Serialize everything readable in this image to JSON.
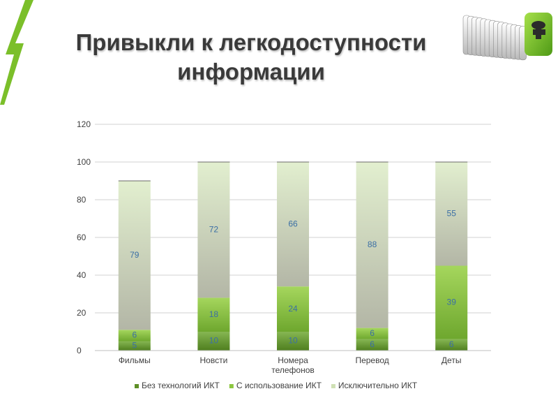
{
  "title": {
    "line1": "Привыкли к легкодоступности",
    "line2": "информации"
  },
  "decor": {
    "slash_icon": "green-lightning-slash",
    "logo_icon": "green-key-cylinder",
    "accent": "#7bbf2a"
  },
  "chart_data": {
    "type": "bar",
    "stacked": true,
    "categories": [
      "Фильмы",
      "Новсти",
      "Номера телефонов",
      "Перевод",
      "Деты"
    ],
    "series": [
      {
        "name": "Без технологий ИКТ",
        "values": [
          5,
          10,
          10,
          6,
          6
        ],
        "color": "#5e8f26"
      },
      {
        "name": "С использование ИКТ",
        "values": [
          6,
          18,
          24,
          6,
          39
        ],
        "color": "#8cc63f"
      },
      {
        "name": "Исключительно ИКТ",
        "values": [
          79,
          72,
          66,
          88,
          55
        ],
        "color": "#cfe0b4"
      }
    ],
    "ylim": [
      0,
      120
    ],
    "yticks": [
      0,
      20,
      40,
      60,
      80,
      100,
      120
    ],
    "grid": true,
    "legend": "bottom",
    "title": "",
    "xlabel": "",
    "ylabel": ""
  }
}
